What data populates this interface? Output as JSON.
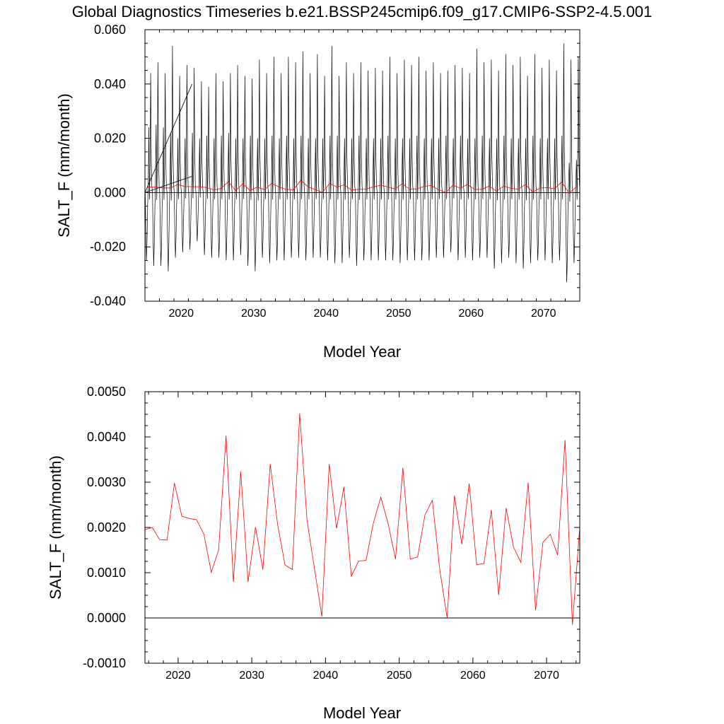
{
  "title": "Global Diagnostics Timeseries b.e21.BSSP245cmip6.f09_g17.CMIP6-SSP2-4.5.001",
  "colors": {
    "monthly": "#000000",
    "annual": "#ff0000",
    "zero_line": "#000000"
  },
  "chart_data": [
    {
      "type": "line",
      "xlabel": "Model Year",
      "ylabel": "SALT_F (mm/month)",
      "xlim": [
        2015,
        2075
      ],
      "ylim": [
        -0.04,
        0.06
      ],
      "xticks": [
        2020,
        2030,
        2040,
        2050,
        2060,
        2070
      ],
      "xtick_labels": [
        "2020",
        "2030",
        "2040",
        "2050",
        "2060",
        "2070"
      ],
      "yticks": [
        -0.04,
        -0.02,
        0.0,
        0.02,
        0.04,
        0.06
      ],
      "ytick_labels": [
        "-0.040",
        "-0.020",
        "0.000",
        "0.020",
        "0.040",
        "0.060"
      ],
      "grid": false,
      "zero_line": true,
      "series": [
        {
          "kind": "monthly_seasonal_cycle",
          "years": [
            2015,
            2016,
            2017,
            2018,
            2019,
            2020,
            2021,
            2022,
            2023,
            2024,
            2025,
            2026,
            2027,
            2028,
            2029,
            2030,
            2031,
            2032,
            2033,
            2034,
            2035,
            2036,
            2037,
            2038,
            2039,
            2040,
            2041,
            2042,
            2043,
            2044,
            2045,
            2046,
            2047,
            2048,
            2049,
            2050,
            2051,
            2052,
            2053,
            2054,
            2055,
            2056,
            2057,
            2058,
            2059,
            2060,
            2061,
            2062,
            2063,
            2064,
            2065,
            2066,
            2067,
            2068,
            2069,
            2070,
            2071,
            2072,
            2073,
            2074
          ],
          "annual_max": [
            0.044,
            0.048,
            0.044,
            0.054,
            0.043,
            0.047,
            0.046,
            0.041,
            0.039,
            0.044,
            0.041,
            0.044,
            0.047,
            0.043,
            0.042,
            0.049,
            0.044,
            0.05,
            0.044,
            0.05,
            0.048,
            0.052,
            0.044,
            0.051,
            0.043,
            0.054,
            0.043,
            0.048,
            0.044,
            0.048,
            0.045,
            0.046,
            0.045,
            0.05,
            0.044,
            0.049,
            0.047,
            0.05,
            0.045,
            0.048,
            0.044,
            0.045,
            0.047,
            0.046,
            0.044,
            0.053,
            0.048,
            0.049,
            0.045,
            0.051,
            0.047,
            0.05,
            0.043,
            0.051,
            0.046,
            0.049,
            0.045,
            0.055,
            0.049,
            0.05
          ],
          "annual_min": [
            -0.025,
            -0.027,
            -0.027,
            -0.029,
            -0.024,
            -0.022,
            -0.021,
            -0.018,
            -0.023,
            -0.024,
            -0.024,
            -0.025,
            -0.025,
            -0.023,
            -0.027,
            -0.029,
            -0.024,
            -0.026,
            -0.025,
            -0.025,
            -0.024,
            -0.024,
            -0.025,
            -0.024,
            -0.024,
            -0.025,
            -0.026,
            -0.026,
            -0.024,
            -0.027,
            -0.025,
            -0.025,
            -0.025,
            -0.025,
            -0.025,
            -0.026,
            -0.025,
            -0.025,
            -0.025,
            -0.025,
            -0.024,
            -0.024,
            -0.022,
            -0.025,
            -0.024,
            -0.025,
            -0.024,
            -0.024,
            -0.028,
            -0.026,
            -0.024,
            -0.026,
            -0.028,
            -0.026,
            -0.025,
            -0.025,
            -0.026,
            -0.025,
            -0.033,
            -0.026
          ],
          "secondary_peak": [
            0.024,
            0.025,
            0.024,
            0.022,
            0.02,
            0.02,
            0.022,
            0.02,
            0.021,
            0.02,
            0.021,
            0.022,
            0.02,
            0.02,
            0.021,
            0.02,
            0.02,
            0.021,
            0.02,
            0.021,
            0.02,
            0.021,
            0.02,
            0.02,
            0.02,
            0.021,
            0.021,
            0.02,
            0.02,
            0.021,
            0.02,
            0.02,
            0.02,
            0.021,
            0.02,
            0.02,
            0.02,
            0.021,
            0.02,
            0.02,
            0.02,
            0.021,
            0.02,
            0.021,
            0.02,
            0.02,
            0.021,
            0.02,
            0.02,
            0.021,
            0.02,
            0.02,
            0.02,
            0.021,
            0.02,
            0.02,
            0.02,
            0.021,
            0.011,
            0.012
          ]
        },
        {
          "kind": "annual_mean",
          "color": "#ff0000",
          "x": [
            2015.5,
            2016.5,
            2017.5,
            2018.5,
            2019.5,
            2020.5,
            2021.5,
            2022.5,
            2023.5,
            2024.5,
            2025.5,
            2026.5,
            2027.5,
            2028.5,
            2029.5,
            2030.5,
            2031.5,
            2032.5,
            2033.5,
            2034.5,
            2035.5,
            2036.5,
            2037.5,
            2038.5,
            2039.5,
            2040.5,
            2041.5,
            2042.5,
            2043.5,
            2044.5,
            2045.5,
            2046.5,
            2047.5,
            2048.5,
            2049.5,
            2050.5,
            2051.5,
            2052.5,
            2053.5,
            2054.5,
            2055.5,
            2056.5,
            2057.5,
            2058.5,
            2059.5,
            2060.5,
            2061.5,
            2062.5,
            2063.5,
            2064.5,
            2065.5,
            2066.5,
            2067.5,
            2068.5,
            2069.5,
            2070.5,
            2071.5,
            2072.5,
            2073.5,
            2074.5
          ],
          "y": [
            0.00195,
            0.002,
            0.00173,
            0.00172,
            0.00298,
            0.00225,
            0.0022,
            0.00217,
            0.00185,
            0.00101,
            0.0015,
            0.00403,
            0.0008,
            0.00323,
            0.0008,
            0.00201,
            0.00107,
            0.0034,
            0.00207,
            0.00117,
            0.00107,
            0.00452,
            0.00215,
            0.0011,
            3e-05,
            0.0034,
            0.00198,
            0.00289,
            0.00092,
            0.00126,
            0.00127,
            0.0021,
            0.00267,
            0.00208,
            0.0013,
            0.00332,
            0.0013,
            0.00135,
            0.00228,
            0.0026,
            0.00108,
            0.0,
            0.0027,
            0.00163,
            0.00297,
            0.00118,
            0.0012,
            0.00239,
            0.00051,
            0.00243,
            0.00157,
            0.00123,
            0.00299,
            0.00017,
            0.00167,
            0.00185,
            0.00139,
            0.00393,
            -0.00015,
            0.002
          ]
        }
      ],
      "inset_trend_lines": [
        {
          "x": [
            2015,
            2021.5
          ],
          "y": [
            0.0,
            0.04
          ]
        },
        {
          "x": [
            2015,
            2021.5
          ],
          "y": [
            0.0,
            0.006
          ]
        }
      ]
    },
    {
      "type": "line",
      "xlabel": "Model Year",
      "ylabel": "SALT_F (mm/month)",
      "xlim": [
        2015.5,
        2074.5
      ],
      "ylim": [
        -0.001,
        0.005
      ],
      "xticks": [
        2020,
        2030,
        2040,
        2050,
        2060,
        2070
      ],
      "xtick_labels": [
        "2020",
        "2030",
        "2040",
        "2050",
        "2060",
        "2070"
      ],
      "yticks": [
        -0.001,
        0.0,
        0.001,
        0.002,
        0.003,
        0.004,
        0.005
      ],
      "ytick_labels": [
        "-0.0010",
        "0.0000",
        "0.0010",
        "0.0020",
        "0.0030",
        "0.0040",
        "0.0050"
      ],
      "grid": false,
      "zero_line": true,
      "series": [
        {
          "kind": "annual_mean",
          "color": "#ff0000",
          "x": [
            2015.5,
            2016.5,
            2017.5,
            2018.5,
            2019.5,
            2020.5,
            2021.5,
            2022.5,
            2023.5,
            2024.5,
            2025.5,
            2026.5,
            2027.5,
            2028.5,
            2029.5,
            2030.5,
            2031.5,
            2032.5,
            2033.5,
            2034.5,
            2035.5,
            2036.5,
            2037.5,
            2038.5,
            2039.5,
            2040.5,
            2041.5,
            2042.5,
            2043.5,
            2044.5,
            2045.5,
            2046.5,
            2047.5,
            2048.5,
            2049.5,
            2050.5,
            2051.5,
            2052.5,
            2053.5,
            2054.5,
            2055.5,
            2056.5,
            2057.5,
            2058.5,
            2059.5,
            2060.5,
            2061.5,
            2062.5,
            2063.5,
            2064.5,
            2065.5,
            2066.5,
            2067.5,
            2068.5,
            2069.5,
            2070.5,
            2071.5,
            2072.5,
            2073.5,
            2074.5
          ],
          "y": [
            0.00195,
            0.002,
            0.00173,
            0.00172,
            0.00298,
            0.00225,
            0.0022,
            0.00217,
            0.00185,
            0.00101,
            0.0015,
            0.00403,
            0.0008,
            0.00323,
            0.0008,
            0.00201,
            0.00107,
            0.0034,
            0.00207,
            0.00117,
            0.00107,
            0.00452,
            0.00215,
            0.0011,
            3e-05,
            0.0034,
            0.00198,
            0.00289,
            0.00092,
            0.00126,
            0.00127,
            0.0021,
            0.00267,
            0.00208,
            0.0013,
            0.00332,
            0.0013,
            0.00135,
            0.00228,
            0.0026,
            0.00108,
            0.0,
            0.0027,
            0.00163,
            0.00297,
            0.00118,
            0.0012,
            0.00239,
            0.00051,
            0.00243,
            0.00157,
            0.00123,
            0.00299,
            0.00017,
            0.00167,
            0.00185,
            0.00139,
            0.00393,
            -0.00015,
            0.002
          ]
        }
      ]
    }
  ]
}
